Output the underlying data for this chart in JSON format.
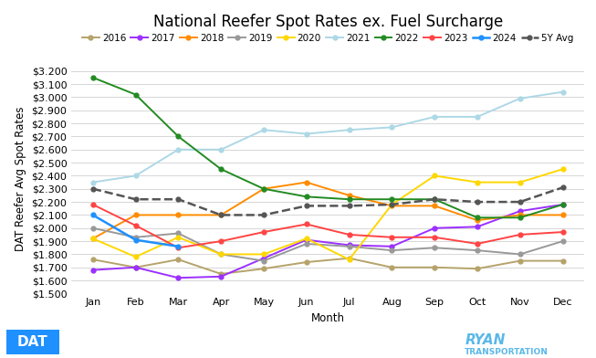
{
  "title": "National Reefer Spot Rates ex. Fuel Surcharge",
  "xlabel": "Month",
  "ylabel": "DAT Reefer Avg Spot Rates",
  "months": [
    "Jan",
    "Feb",
    "Mar",
    "Apr",
    "May",
    "Jun",
    "Jul",
    "Aug",
    "Sep",
    "Oct",
    "Nov",
    "Dec"
  ],
  "ylim": [
    1.5,
    3.25
  ],
  "yticks": [
    1.5,
    1.6,
    1.7,
    1.8,
    1.9,
    2.0,
    2.1,
    2.2,
    2.3,
    2.4,
    2.5,
    2.6,
    2.7,
    2.8,
    2.9,
    3.0,
    3.1,
    3.2
  ],
  "series": [
    {
      "label": "2016",
      "values": [
        1.76,
        1.7,
        1.76,
        1.65,
        1.69,
        1.74,
        1.77,
        1.7,
        1.7,
        1.69,
        1.75,
        1.75
      ],
      "color": "#b5a36a",
      "marker": "o",
      "linewidth": 1.4,
      "markersize": 3.5,
      "linestyle": "-",
      "zorder": 2
    },
    {
      "label": "2017",
      "values": [
        1.68,
        1.7,
        1.62,
        1.63,
        1.77,
        1.91,
        1.87,
        1.86,
        2.0,
        2.01,
        2.13,
        2.18
      ],
      "color": "#9B30FF",
      "marker": "o",
      "linewidth": 1.4,
      "markersize": 3.5,
      "linestyle": "-",
      "zorder": 2
    },
    {
      "label": "2018",
      "values": [
        1.92,
        2.1,
        2.1,
        2.1,
        2.3,
        2.35,
        2.25,
        2.17,
        2.17,
        2.06,
        2.1,
        2.1
      ],
      "color": "#FF8C00",
      "marker": "o",
      "linewidth": 1.4,
      "markersize": 3.5,
      "linestyle": "-",
      "zorder": 2
    },
    {
      "label": "2019",
      "values": [
        2.0,
        1.93,
        1.96,
        1.8,
        1.75,
        1.88,
        1.86,
        1.83,
        1.85,
        1.83,
        1.8,
        1.9
      ],
      "color": "#999999",
      "marker": "o",
      "linewidth": 1.4,
      "markersize": 3.5,
      "linestyle": "-",
      "zorder": 2
    },
    {
      "label": "2020",
      "values": [
        1.92,
        1.78,
        1.93,
        1.8,
        1.8,
        1.92,
        1.76,
        2.18,
        2.4,
        2.35,
        2.35,
        2.45
      ],
      "color": "#FFD700",
      "marker": "o",
      "linewidth": 1.4,
      "markersize": 3.5,
      "linestyle": "-",
      "zorder": 2
    },
    {
      "label": "2021",
      "values": [
        2.35,
        2.4,
        2.6,
        2.6,
        2.75,
        2.72,
        2.75,
        2.77,
        2.85,
        2.85,
        2.99,
        3.04
      ],
      "color": "#ADD8E6",
      "marker": "o",
      "linewidth": 1.4,
      "markersize": 3.5,
      "linestyle": "-",
      "zorder": 2
    },
    {
      "label": "2022",
      "values": [
        3.15,
        3.02,
        2.7,
        2.45,
        2.3,
        2.24,
        2.22,
        2.22,
        2.22,
        2.08,
        2.08,
        2.18
      ],
      "color": "#228B22",
      "marker": "o",
      "linewidth": 1.4,
      "markersize": 3.5,
      "linestyle": "-",
      "zorder": 2
    },
    {
      "label": "2023",
      "values": [
        2.18,
        2.02,
        1.85,
        1.9,
        1.97,
        2.03,
        1.95,
        1.93,
        1.93,
        1.88,
        1.95,
        1.97
      ],
      "color": "#FF4444",
      "marker": "o",
      "linewidth": 1.4,
      "markersize": 3.5,
      "linestyle": "-",
      "zorder": 2
    },
    {
      "label": "2024",
      "values": [
        2.1,
        1.91,
        1.86,
        null,
        null,
        null,
        null,
        null,
        null,
        null,
        null,
        null
      ],
      "color": "#1E90FF",
      "marker": "o",
      "linewidth": 1.8,
      "markersize": 3.5,
      "linestyle": "-",
      "zorder": 3
    },
    {
      "label": "5Y Avg",
      "values": [
        2.3,
        2.22,
        2.22,
        2.1,
        2.1,
        2.17,
        2.17,
        2.18,
        2.22,
        2.2,
        2.2,
        2.31
      ],
      "color": "#555555",
      "marker": "o",
      "linewidth": 1.8,
      "markersize": 3.5,
      "linestyle": "--",
      "zorder": 2
    }
  ],
  "background_color": "#ffffff",
  "grid_color": "#d0d0d0",
  "title_fontsize": 12,
  "axis_label_fontsize": 8.5,
  "tick_fontsize": 8,
  "legend_fontsize": 7.5,
  "dat_logo_color": "#1E90FF",
  "ryan_logo_color": "#5BB8E8"
}
